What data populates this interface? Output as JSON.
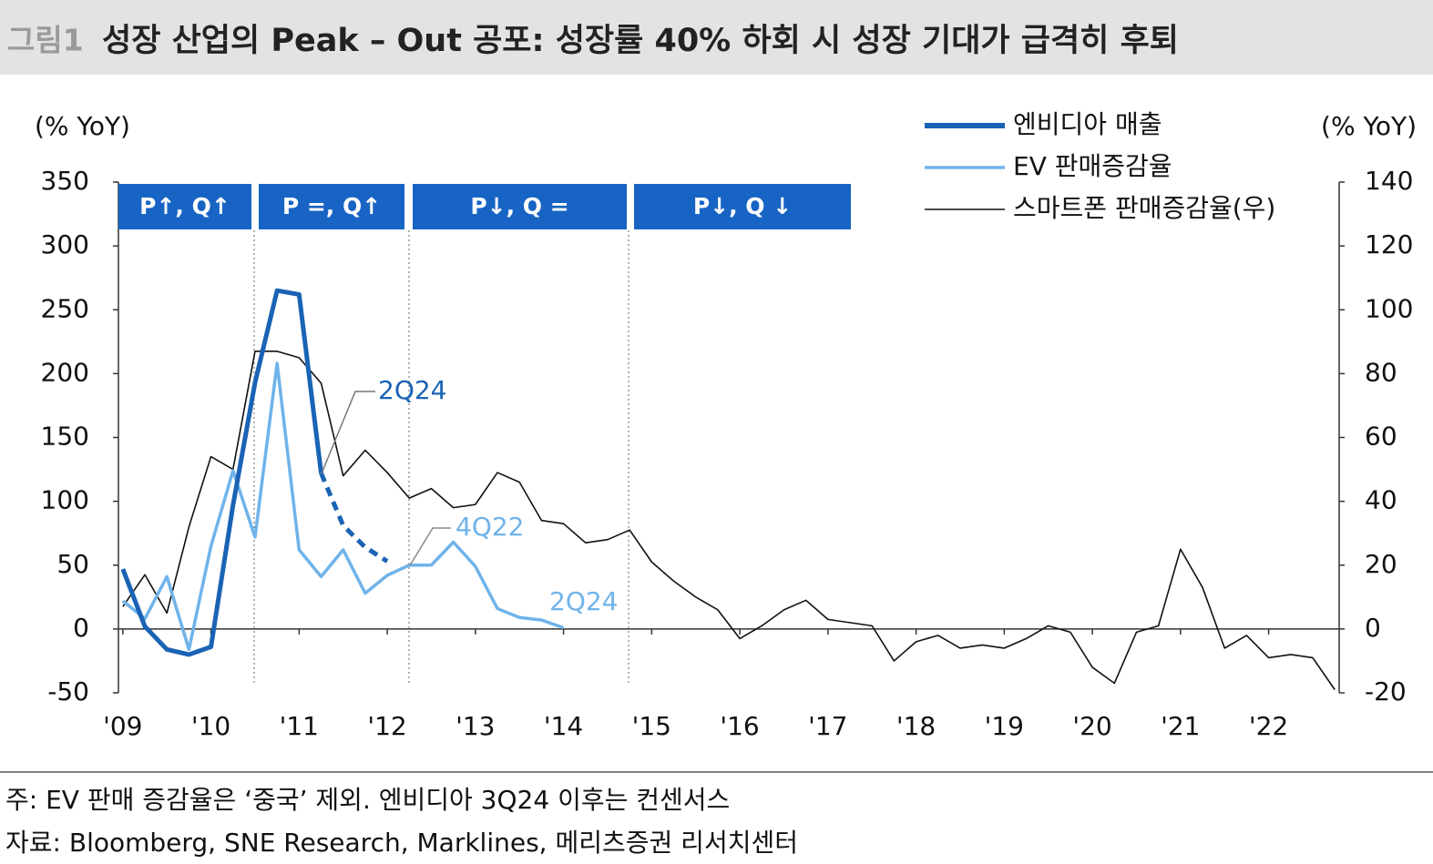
{
  "chart_data": {
    "type": "line",
    "label": "그림1",
    "title": "성장 산업의 Peak – Out 공포: 성장률 40% 하회 시 성장 기대가 급격히 후퇴",
    "y_label": "(% YoY)",
    "y2_label": "(% YoY)",
    "x": [
      2009,
      2009.25,
      2009.5,
      2009.75,
      2010,
      2010.25,
      2010.5,
      2010.75,
      2011,
      2011.25,
      2011.5,
      2011.75,
      2012,
      2012.25,
      2012.5,
      2012.75,
      2013,
      2013.25,
      2013.5,
      2013.75,
      2014,
      2014.25,
      2014.5,
      2014.75,
      2015,
      2015.25,
      2015.5,
      2015.75,
      2016,
      2016.25,
      2016.5,
      2016.75,
      2017,
      2017.25,
      2017.5,
      2017.75,
      2018,
      2018.25,
      2018.5,
      2018.75,
      2019,
      2019.25,
      2019.5,
      2019.75,
      2020,
      2020.25,
      2020.5,
      2020.75,
      2021,
      2021.25,
      2021.5,
      2021.75,
      2022,
      2022.25,
      2022.5,
      2022.75
    ],
    "series": [
      {
        "name": "엔비디아 매출",
        "color": "#1a63b5",
        "values": [
          47,
          2,
          -16,
          -20,
          -14,
          97,
          193,
          265,
          262,
          122,
          null,
          null,
          null,
          null,
          null,
          null,
          null,
          null,
          null,
          null,
          null,
          null,
          null,
          null,
          null,
          null,
          null,
          null,
          null,
          null,
          null,
          null,
          null,
          null,
          null,
          null,
          null,
          null,
          null,
          null,
          null,
          null,
          null,
          null,
          null,
          null,
          null,
          null,
          null,
          null,
          null,
          null,
          null,
          null,
          null,
          null
        ],
        "projected_values": [
          null,
          null,
          null,
          null,
          null,
          null,
          null,
          null,
          null,
          122,
          81,
          64,
          53,
          null,
          null,
          null,
          null,
          null,
          null,
          null,
          null,
          null,
          null,
          null,
          null,
          null,
          null,
          null,
          null,
          null,
          null,
          null,
          null,
          null,
          null,
          null,
          null,
          null,
          null,
          null,
          null,
          null,
          null,
          null,
          null,
          null,
          null,
          null,
          null,
          null,
          null,
          null,
          null,
          null,
          null,
          null
        ]
      },
      {
        "name": "EV 판매증감율",
        "color": "#6fb3ea",
        "values": [
          22,
          8,
          41,
          -16,
          65,
          124,
          72,
          208,
          62,
          41,
          62,
          28,
          42,
          50,
          50,
          68,
          49,
          16,
          9,
          7,
          1,
          null,
          null,
          null,
          null,
          null,
          null,
          null,
          null,
          null,
          null,
          null,
          null,
          null,
          null,
          null,
          null,
          null,
          null,
          null,
          null,
          null,
          null,
          null,
          null,
          null,
          null,
          null,
          null,
          null,
          null,
          null,
          null,
          null,
          null,
          null
        ]
      },
      {
        "name": "스마트폰 판매증감율(우)",
        "color": "#111111",
        "axis": "y2",
        "values": [
          7,
          17,
          5,
          32,
          54,
          50,
          87,
          87,
          85,
          77,
          48,
          56,
          49,
          41,
          44,
          38,
          39,
          49,
          46,
          34,
          33,
          27,
          28,
          31,
          21,
          15,
          10,
          6,
          -3,
          1,
          6,
          9,
          3,
          2,
          1,
          -10,
          -4,
          -2,
          -6,
          -5,
          -6,
          -3,
          1,
          -1,
          -12,
          -17,
          -1,
          1,
          25,
          13,
          -6,
          -2,
          -9,
          -8,
          -9,
          -19
        ]
      }
    ],
    "xlim": [
      2008.95,
      2022.8
    ],
    "xticks": [
      {
        "value": 2009,
        "label": "'09"
      },
      {
        "value": 2010,
        "label": "'10"
      },
      {
        "value": 2011,
        "label": "'11"
      },
      {
        "value": 2012,
        "label": "'12"
      },
      {
        "value": 2013,
        "label": "'13"
      },
      {
        "value": 2014,
        "label": "'14"
      },
      {
        "value": 2015,
        "label": "'15"
      },
      {
        "value": 2016,
        "label": "'16"
      },
      {
        "value": 2017,
        "label": "'17"
      },
      {
        "value": 2018,
        "label": "'18"
      },
      {
        "value": 2019,
        "label": "'19"
      },
      {
        "value": 2020,
        "label": "'20"
      },
      {
        "value": 2021,
        "label": "'21"
      },
      {
        "value": 2022,
        "label": "'22"
      }
    ],
    "ylim": [
      -50,
      350
    ],
    "yticks": [
      -50,
      0,
      50,
      100,
      150,
      200,
      250,
      300,
      350
    ],
    "y2lim": [
      -20,
      140
    ],
    "y2ticks": [
      -20,
      0,
      20,
      40,
      60,
      80,
      100,
      120,
      140
    ],
    "phases": [
      "P↑, Q↑",
      "P =, Q↑",
      "P↓, Q =",
      "P↓, Q ↓"
    ],
    "annotations": [
      "2Q24",
      "4Q22",
      "2Q24"
    ],
    "legend": "upper right",
    "note": "주: EV 판매 증감율은 ‘중국’ 제외. 엔비디아 3Q24 이후는 컨센서스",
    "source": "자료: Bloomberg, SNE Research, Marklines, 메리츠증권 리서치센터"
  }
}
